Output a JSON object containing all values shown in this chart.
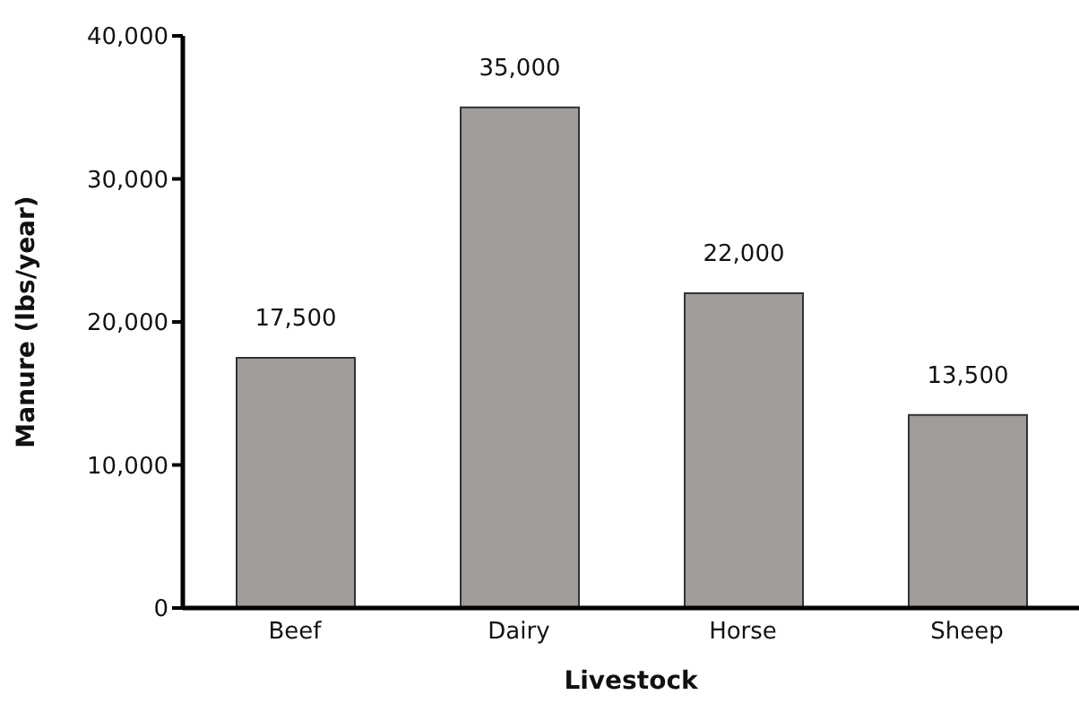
{
  "chart_data": {
    "type": "bar",
    "xlabel": "Livestock",
    "ylabel": "Manure (lbs/year)",
    "categories": [
      "Beef",
      "Dairy",
      "Horse",
      "Sheep"
    ],
    "values": [
      17500,
      35000,
      22000,
      13500
    ],
    "color": "#a09c99",
    "ylim": [
      0,
      40000
    ],
    "yticks": [
      {
        "value": 0,
        "label": "0"
      },
      {
        "value": 10000,
        "label": "10,000"
      },
      {
        "value": 20000,
        "label": "20,000"
      },
      {
        "value": 30000,
        "label": "30,000"
      },
      {
        "value": 40000,
        "label": "40,000"
      }
    ],
    "value_labels": [
      "17,500",
      "35,000",
      "22,000",
      "13,500"
    ],
    "grid": false,
    "legend": false
  }
}
